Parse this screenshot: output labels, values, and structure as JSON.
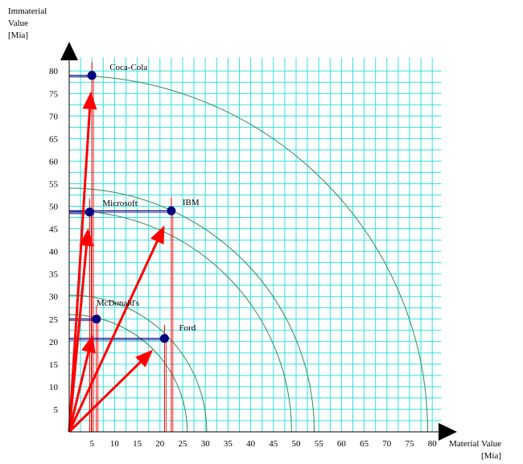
{
  "chart_data": {
    "type": "scatter",
    "ylabel_lines": [
      "Immaterial",
      "Value",
      "[Mia]"
    ],
    "xlabel_lines": [
      "Material Value",
      "[Mia]"
    ],
    "xlim": [
      0,
      80
    ],
    "ylim": [
      0,
      80
    ],
    "x_ticks": [
      5,
      10,
      15,
      20,
      25,
      30,
      35,
      40,
      45,
      50,
      55,
      60,
      65,
      70,
      75,
      80
    ],
    "y_ticks": [
      5,
      10,
      15,
      20,
      25,
      30,
      35,
      40,
      45,
      50,
      55,
      60,
      65,
      70,
      75,
      80
    ],
    "grid": true,
    "points": [
      {
        "label": "Coca-Cola",
        "x": 5,
        "y": 79
      },
      {
        "label": "Microsoft",
        "x": 4.5,
        "y": 48.7
      },
      {
        "label": "IBM",
        "x": 22.5,
        "y": 49
      },
      {
        "label": "McDonald's",
        "x": 6,
        "y": 25
      },
      {
        "label": "Ford",
        "x": 21,
        "y": 20.7
      }
    ],
    "circle_radii": [
      26,
      30.3,
      49,
      54,
      79
    ],
    "colors": {
      "grid": "#33e0e0",
      "arc": "#2e8b57",
      "arrow": "#ff0000",
      "point": "#000080",
      "ref_line": "#000080"
    }
  }
}
